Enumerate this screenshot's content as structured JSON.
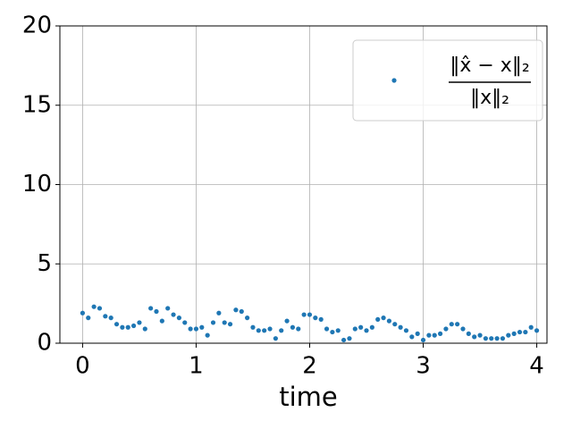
{
  "chart_data": {
    "type": "scatter",
    "xlabel": "time",
    "legend_label": {
      "numerator": "‖x̂ − x‖₂",
      "denominator": "‖x‖₂"
    },
    "legend_position": "upper right",
    "grid": true,
    "xlim": [
      -0.2,
      4.09
    ],
    "xticks": [
      0,
      1,
      2,
      3,
      4
    ],
    "ylim": [
      0,
      20
    ],
    "yticks": [
      0,
      5,
      10,
      15,
      20
    ],
    "series": [
      {
        "color": "#1f77b4",
        "x": [
          0,
          0.05,
          0.1,
          0.15,
          0.2,
          0.25,
          0.3,
          0.35,
          0.4,
          0.45,
          0.5,
          0.55,
          0.6,
          0.65,
          0.7,
          0.75,
          0.8,
          0.85,
          0.9,
          0.95,
          1,
          1.05,
          1.1,
          1.15,
          1.2,
          1.25,
          1.3,
          1.35,
          1.4,
          1.45,
          1.5,
          1.55,
          1.6,
          1.65,
          1.7,
          1.75,
          1.8,
          1.85,
          1.9,
          1.95,
          2,
          2.05,
          2.1,
          2.15,
          2.2,
          2.25,
          2.3,
          2.35,
          2.4,
          2.45,
          2.5,
          2.55,
          2.6,
          2.65,
          2.7,
          2.75,
          2.8,
          2.85,
          2.9,
          2.95,
          3,
          3.05,
          3.1,
          3.15,
          3.2,
          3.25,
          3.3,
          3.35,
          3.4,
          3.45,
          3.5,
          3.55,
          3.6,
          3.65,
          3.7,
          3.75,
          3.8,
          3.85,
          3.9,
          3.95,
          4
        ],
        "values": [
          1.9,
          1.6,
          2.3,
          2.2,
          1.7,
          1.6,
          1.2,
          1.0,
          1.0,
          1.1,
          1.3,
          0.9,
          2.2,
          2.0,
          1.4,
          2.2,
          1.8,
          1.6,
          1.3,
          0.9,
          0.9,
          1.0,
          0.5,
          1.3,
          1.9,
          1.3,
          1.2,
          2.1,
          2.0,
          1.6,
          1.0,
          0.8,
          0.8,
          0.9,
          0.3,
          0.8,
          1.4,
          1.0,
          0.9,
          1.8,
          1.8,
          1.6,
          1.5,
          0.9,
          0.7,
          0.8,
          0.2,
          0.3,
          0.9,
          1.0,
          0.8,
          1.0,
          1.5,
          1.6,
          1.4,
          1.2,
          1.0,
          0.8,
          0.4,
          0.6,
          0.2,
          0.5,
          0.5,
          0.6,
          0.9,
          1.2,
          1.2,
          0.9,
          0.6,
          0.4,
          0.5,
          0.3,
          0.3,
          0.3,
          0.3,
          0.5,
          0.6,
          0.7,
          0.7,
          1.0,
          0.8
        ]
      }
    ]
  }
}
